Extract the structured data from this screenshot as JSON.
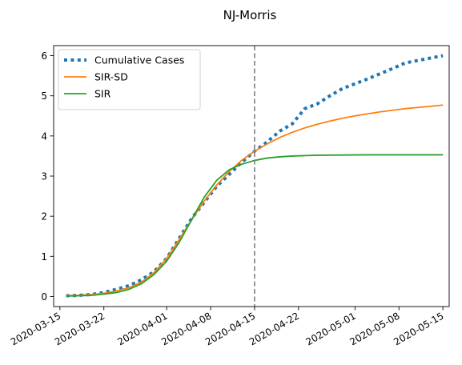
{
  "chart_data": {
    "type": "line",
    "title": "NJ-Morris",
    "xlabel": "",
    "ylabel": "",
    "xlim": [
      "2020-03-14",
      "2020-05-16"
    ],
    "ylim": [
      -0.25,
      6.25
    ],
    "x_ticks": [
      "2020-03-15",
      "2020-03-22",
      "2020-04-01",
      "2020-04-08",
      "2020-04-15",
      "2020-04-22",
      "2020-05-01",
      "2020-05-08",
      "2020-05-15"
    ],
    "y_ticks": [
      0,
      1,
      2,
      3,
      4,
      5,
      6
    ],
    "grid": false,
    "legend": "top-left",
    "vline": {
      "x": "2020-04-15",
      "color": "#7f7f7f",
      "style": "dashed"
    },
    "series": [
      {
        "name": "Cumulative Cases",
        "color": "#1f77b4",
        "style": "dotted",
        "points": [
          [
            "2020-03-16",
            0.02
          ],
          [
            "2020-03-18",
            0.03
          ],
          [
            "2020-03-20",
            0.05
          ],
          [
            "2020-03-22",
            0.1
          ],
          [
            "2020-03-24",
            0.18
          ],
          [
            "2020-03-26",
            0.27
          ],
          [
            "2020-03-28",
            0.42
          ],
          [
            "2020-03-30",
            0.62
          ],
          [
            "2020-04-01",
            0.95
          ],
          [
            "2020-04-03",
            1.45
          ],
          [
            "2020-04-05",
            1.95
          ],
          [
            "2020-04-07",
            2.35
          ],
          [
            "2020-04-09",
            2.75
          ],
          [
            "2020-04-11",
            3.05
          ],
          [
            "2020-04-13",
            3.35
          ],
          [
            "2020-04-15",
            3.62
          ],
          [
            "2020-04-17",
            3.85
          ],
          [
            "2020-04-19",
            4.12
          ],
          [
            "2020-04-21",
            4.3
          ],
          [
            "2020-04-23",
            4.68
          ],
          [
            "2020-04-25",
            4.8
          ],
          [
            "2020-04-27",
            5.0
          ],
          [
            "2020-04-29",
            5.18
          ],
          [
            "2020-05-01",
            5.3
          ],
          [
            "2020-05-03",
            5.42
          ],
          [
            "2020-05-05",
            5.55
          ],
          [
            "2020-05-07",
            5.68
          ],
          [
            "2020-05-09",
            5.82
          ],
          [
            "2020-05-11",
            5.88
          ],
          [
            "2020-05-13",
            5.94
          ],
          [
            "2020-05-15",
            6.0
          ]
        ]
      },
      {
        "name": "SIR-SD",
        "color": "#ff7f0e",
        "style": "solid",
        "points": [
          [
            "2020-03-16",
            0.02
          ],
          [
            "2020-03-18",
            0.03
          ],
          [
            "2020-03-20",
            0.05
          ],
          [
            "2020-03-22",
            0.08
          ],
          [
            "2020-03-24",
            0.14
          ],
          [
            "2020-03-26",
            0.22
          ],
          [
            "2020-03-28",
            0.36
          ],
          [
            "2020-03-30",
            0.6
          ],
          [
            "2020-04-01",
            0.95
          ],
          [
            "2020-04-03",
            1.42
          ],
          [
            "2020-04-05",
            1.92
          ],
          [
            "2020-04-07",
            2.38
          ],
          [
            "2020-04-09",
            2.78
          ],
          [
            "2020-04-11",
            3.12
          ],
          [
            "2020-04-13",
            3.4
          ],
          [
            "2020-04-15",
            3.62
          ],
          [
            "2020-04-17",
            3.8
          ],
          [
            "2020-04-19",
            3.96
          ],
          [
            "2020-04-21",
            4.09
          ],
          [
            "2020-04-23",
            4.2
          ],
          [
            "2020-04-25",
            4.29
          ],
          [
            "2020-04-27",
            4.37
          ],
          [
            "2020-04-29",
            4.44
          ],
          [
            "2020-05-01",
            4.5
          ],
          [
            "2020-05-03",
            4.55
          ],
          [
            "2020-05-05",
            4.6
          ],
          [
            "2020-05-07",
            4.64
          ],
          [
            "2020-05-09",
            4.68
          ],
          [
            "2020-05-11",
            4.71
          ],
          [
            "2020-05-13",
            4.74
          ],
          [
            "2020-05-15",
            4.77
          ]
        ]
      },
      {
        "name": "SIR",
        "color": "#2ca02c",
        "style": "solid",
        "points": [
          [
            "2020-03-16",
            0.01
          ],
          [
            "2020-03-18",
            0.02
          ],
          [
            "2020-03-20",
            0.03
          ],
          [
            "2020-03-22",
            0.06
          ],
          [
            "2020-03-24",
            0.1
          ],
          [
            "2020-03-26",
            0.18
          ],
          [
            "2020-03-28",
            0.32
          ],
          [
            "2020-03-30",
            0.55
          ],
          [
            "2020-04-01",
            0.88
          ],
          [
            "2020-04-03",
            1.35
          ],
          [
            "2020-04-05",
            1.92
          ],
          [
            "2020-04-07",
            2.48
          ],
          [
            "2020-04-09",
            2.9
          ],
          [
            "2020-04-11",
            3.16
          ],
          [
            "2020-04-13",
            3.3
          ],
          [
            "2020-04-15",
            3.39
          ],
          [
            "2020-04-17",
            3.45
          ],
          [
            "2020-04-19",
            3.48
          ],
          [
            "2020-04-21",
            3.5
          ],
          [
            "2020-04-23",
            3.51
          ],
          [
            "2020-04-25",
            3.52
          ],
          [
            "2020-04-29",
            3.525
          ],
          [
            "2020-05-03",
            3.53
          ],
          [
            "2020-05-09",
            3.53
          ],
          [
            "2020-05-15",
            3.53
          ]
        ]
      }
    ]
  }
}
